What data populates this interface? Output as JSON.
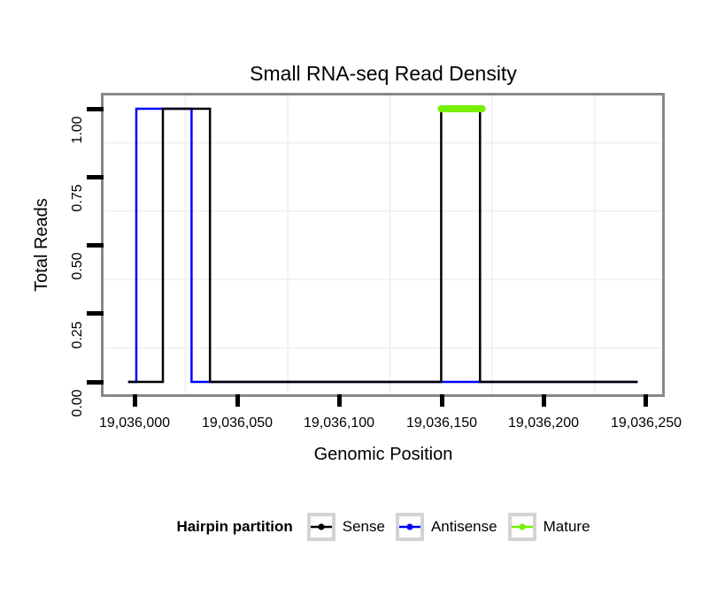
{
  "title": "Small RNA-seq Read Density",
  "x_axis": {
    "label": "Genomic Position",
    "ticks": [
      "19,036,000",
      "19,036,050",
      "19,036,100",
      "19,036,150",
      "19,036,200",
      "19,036,250"
    ]
  },
  "y_axis": {
    "label": "Total Reads",
    "ticks": [
      "1.00",
      "0.75",
      "0.50",
      "0.25",
      "0.00"
    ]
  },
  "legend": {
    "title": "Hairpin partition",
    "items": [
      {
        "label": "Sense",
        "color": "#000000"
      },
      {
        "label": "Antisense",
        "color": "#0000FF"
      },
      {
        "label": "Mature",
        "color": "#76EE00"
      }
    ]
  },
  "chart_data": {
    "type": "line",
    "subtype": "step-density",
    "title": "Small RNA-seq Read Density",
    "xlabel": "Genomic Position",
    "ylabel": "Total Reads",
    "xlim": [
      19035985,
      19036258
    ],
    "ylim": [
      0,
      1
    ],
    "x_major_ticks": [
      19036000,
      19036050,
      19036100,
      19036150,
      19036200,
      19036250
    ],
    "y_major_ticks": [
      0,
      0.25,
      0.5,
      0.75,
      1
    ],
    "grid": "minor gridlines only, very light gray, between major ticks",
    "legend_position": "bottom",
    "panel_border_color": "#888888",
    "gridline_color": "#EFEFEF",
    "series": [
      {
        "name": "Sense",
        "color": "#000000",
        "style": "step line, width 2.5",
        "points": [
          [
            19035997,
            0
          ],
          [
            19036014,
            0
          ],
          [
            19036014,
            1
          ],
          [
            19036037,
            1
          ],
          [
            19036037,
            0
          ],
          [
            19036150,
            0
          ],
          [
            19036150,
            1
          ],
          [
            19036169,
            1
          ],
          [
            19036169,
            0
          ],
          [
            19036246,
            0
          ]
        ]
      },
      {
        "name": "Antisense",
        "color": "#0000FF",
        "style": "step line, width 2.5",
        "points": [
          [
            19035997,
            0
          ],
          [
            19036001,
            0
          ],
          [
            19036001,
            1
          ],
          [
            19036028,
            1
          ],
          [
            19036028,
            0
          ],
          [
            19036246,
            0
          ]
        ]
      },
      {
        "name": "Mature",
        "color": "#76EE00",
        "style": "thick segment, width 8, round caps",
        "points": [
          [
            19036150,
            1
          ],
          [
            19036170,
            1
          ]
        ]
      }
    ]
  }
}
